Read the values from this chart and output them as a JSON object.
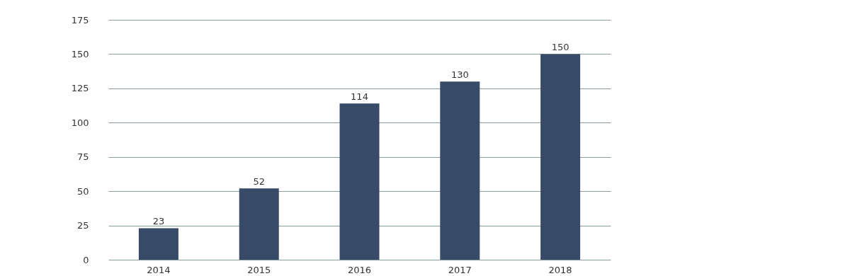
{
  "chart_data": {
    "type": "bar",
    "categories": [
      "2014",
      "2015",
      "2016",
      "2017",
      "2018"
    ],
    "values": [
      23,
      52,
      114,
      130,
      150
    ],
    "color": "#374a67",
    "ylim": [
      0,
      175
    ],
    "yticks": [
      0,
      25,
      50,
      75,
      100,
      125,
      150,
      175
    ],
    "grid": "y",
    "data_labels": true
  }
}
